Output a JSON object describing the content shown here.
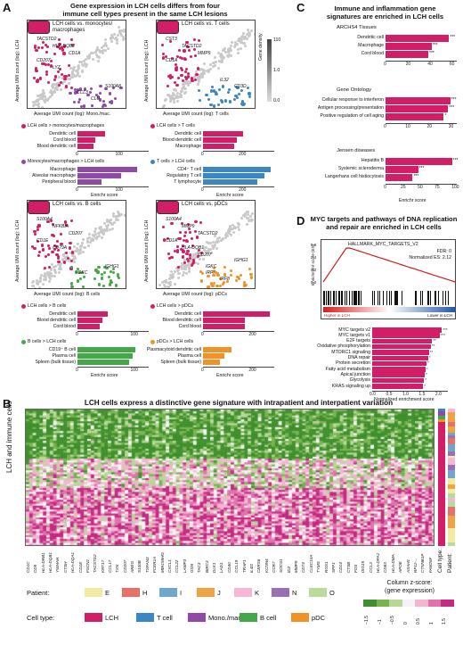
{
  "panels": {
    "A": {
      "letter": "A",
      "title_line1": "Gene expression in LCH cells differs from four",
      "title_line2": "immune cell types present in the same LCH lesions",
      "ylabel": "Average UMI count (log): LCH",
      "density_label": "Gene density",
      "density_ticks": [
        "110",
        "1.0",
        "0.0"
      ],
      "enrichr_label": "Enrichr score",
      "sub": [
        {
          "title_l1": "LCH cells vs. monocytes/",
          "title_l2": "macrophages",
          "xlabel": "Average UMI count (log): Mono./mac.",
          "genes": [
            "TACSTD2",
            "HLA-DQB2",
            "CD1A",
            "CD207",
            "LYZ",
            "S100A8",
            "CCL3",
            "CLU"
          ],
          "up_title": "LCH cells > monocytes/macrophages",
          "up_terms": [
            "Dendritic cell",
            "Cord blood",
            "Blood dendritic cell"
          ],
          "up_values": [
            70,
            45,
            40
          ],
          "down_title": "Monocytes/macrophages > LCH cells",
          "down_terms": [
            "Macrophage",
            "Alveolar macrophage",
            "Peripheral blood"
          ],
          "down_values": [
            150,
            110,
            60
          ],
          "xticks": [
            "0",
            "100"
          ]
        },
        {
          "title_l1": "LCH cells vs. T cells",
          "title_l2": "",
          "xlabel": "Average UMI count (log): T cells",
          "genes": [
            "CST3",
            "TACSTD2",
            "MMP9",
            "CD1A",
            "IL32",
            "CD3D"
          ],
          "up_title": "LCH cells > T cells",
          "up_terms": [
            "Dendritic cell",
            "Blood dendritic cell",
            "Macrophage"
          ],
          "up_values": [
            215,
            180,
            165
          ],
          "down_title": "T cells > LCH cells",
          "down_terms": [
            "CD4⁺ T cell",
            "Regulatory T cell",
            "T lymphocyte"
          ],
          "down_values": [
            360,
            330,
            290
          ],
          "xticks": [
            "0",
            "200"
          ]
        },
        {
          "title_l1": "LCH cells vs. B cells",
          "title_l2": "",
          "xlabel": "Average UMI count (log): B cells",
          "genes": [
            "S100A4",
            "NFKBIA",
            "CD207",
            "CD1E",
            "CD79A",
            "IGHG1",
            "IGKC"
          ],
          "up_title": "LCH cells > B cells",
          "up_terms": [
            "Dendritic cell",
            "Blood dendritic cell",
            "Cord blood"
          ],
          "up_values": [
            55,
            45,
            40
          ],
          "down_title": "B cells > LCH cells",
          "down_terms": [
            "CD19⁺ B cell",
            "Plasma cell",
            "Spleen (bulk tissue)"
          ],
          "down_values": [
            105,
            100,
            95
          ],
          "xticks": [
            "0",
            "100"
          ]
        },
        {
          "title_l1": "LCH cells vs. pDCs",
          "title_l2": "",
          "xlabel": "Average UMI count (log): pDCs",
          "genes": [
            "S100A4",
            "MMP9",
            "TACSTD2",
            "CD1A",
            "HLA-DQB1",
            "CD207",
            "IRF7",
            "IRF8",
            "IGHG1",
            "IGKC"
          ],
          "up_title": "LCH cells > pDCs",
          "up_terms": [
            "Dendritic cell",
            "Blood dendritic cell",
            "Cord blood"
          ],
          "up_values": [
            280,
            175,
            175
          ],
          "down_title": "pDCs > LCH cells",
          "down_terms": [
            "Plasmacytoid dendritic cell",
            "Plasma cell",
            "Spleen (bulk tissue)"
          ],
          "down_values": [
            120,
            90,
            70
          ],
          "xticks": [
            "0",
            "200"
          ]
        }
      ]
    },
    "C": {
      "letter": "C",
      "title_line1": "Immune and inflammation gene",
      "title_line2": "signatures are enriched in LCH cells",
      "groups": [
        {
          "name": "ARCHS4 Tissues",
          "terms": [
            "Dendritic cell",
            "Macrophage",
            "Cord blood"
          ],
          "values": [
            58,
            42,
            39
          ],
          "stars": [
            "***",
            "***",
            "***"
          ],
          "xticks": [
            "0",
            "20",
            "40",
            "60"
          ],
          "xmax": 65
        },
        {
          "name": "Gene Ontology",
          "terms": [
            "Cellular response to interferon",
            "Antigen processing/presentation",
            "Positive regulation of cell aging"
          ],
          "values": [
            30,
            29,
            27
          ],
          "stars": [
            "***",
            "***",
            "*"
          ],
          "xticks": [
            "0",
            "10",
            "20",
            "30"
          ],
          "xmax": 33
        },
        {
          "name": "Jensen diseases",
          "terms": [
            "Hepatitis B",
            "Systemic scleroderma",
            "Langerhans cell histiocytosis"
          ],
          "values": [
            98,
            48,
            40
          ],
          "stars": [
            "***",
            "***",
            "***"
          ],
          "xticks": [
            "0",
            "25",
            "50",
            "75",
            "100"
          ],
          "xmax": 105
        }
      ],
      "xlabel": "Enrichr score"
    },
    "D": {
      "letter": "D",
      "title_line1": "MYC targets and pathways of DNA replication",
      "title_line2": "and repair are enriched in LCH cells",
      "gsea_title": "HALLMARK_MYC_TARGETS_V2",
      "fdr": "FDR: 0",
      "nes": "Normalized ES: 2.12",
      "ylabel": "Enrichment score (ES)",
      "yticks": [
        "0.6",
        "0.4",
        "0.2",
        "0.0"
      ],
      "higher_label": "Higher in LCH",
      "lower_label": "Lower in LCH",
      "terms": [
        "MYC targets v2",
        "MYC targets v1",
        "E2F targets",
        "Oxidative phosphorylation",
        "MTORC1 signaling",
        "DNA repair",
        "Protein secretion",
        "Fatty acid metabolism",
        "Apical junction",
        "Glycolysis",
        "KRAS signaling up"
      ],
      "values": [
        2.12,
        2.05,
        1.82,
        1.78,
        1.72,
        1.7,
        1.65,
        1.62,
        1.6,
        1.58,
        1.55
      ],
      "stars": [
        "***",
        "***",
        "**",
        "**",
        "**",
        "*",
        "*",
        "*",
        "*",
        "*",
        "*"
      ],
      "xticks": [
        "0.0",
        "0.5",
        "1.0",
        "1.5",
        "2.0"
      ],
      "xlabel": "Normalized enrichment score"
    },
    "B": {
      "letter": "B",
      "title": "LCH cells express a distinctive gene signature with intrapatient and interpatient variation",
      "ylabel": "LCH and immune cells",
      "col_cell_type": "Cell type:",
      "col_patient": "Patient:",
      "genes": [
        "CD1C",
        "CD9",
        "HLA-DRB1",
        "HLA-DQB1",
        "YWHAH",
        "CTSH",
        "HLA-DQA1",
        "CD1E",
        "FSCN1",
        "TACSTD2",
        "KRT17",
        "CCL17",
        "TXN",
        "CD207",
        "AREG",
        "S100B",
        "TSPAN3",
        "FCER1A",
        "MIR155HG",
        "CXCL1",
        "CCL22",
        "LAMP3",
        "GSN",
        "TAC3",
        "BIRC3",
        "DLK1",
        "LAD1",
        "CD40",
        "CCL19",
        "TRAF1",
        "IL4I1",
        "CERS6",
        "KCNN4",
        "CCR7",
        "SOCS1",
        "ID2",
        "MMP9",
        "CD74",
        "CLEC10A",
        "TYMS",
        "RGS1",
        "SPP1",
        "CD14",
        "CTSB",
        "FOS",
        "ISG15",
        "CCL3",
        "HLA-DPA1",
        "CD83",
        "HLA-DMA",
        "APOE",
        "ASAH1",
        "RP11-...",
        "CTNNB1P",
        "FAM26F"
      ]
    },
    "legend": {
      "patient_label": "Patient:",
      "patients": [
        {
          "name": "E",
          "color": "#f2eca2"
        },
        {
          "name": "H",
          "color": "#ea6f66"
        },
        {
          "name": "I",
          "color": "#6fa6cf"
        },
        {
          "name": "J",
          "color": "#f0a340"
        },
        {
          "name": "K",
          "color": "#f7b7d4"
        },
        {
          "name": "N",
          "color": "#9a6fb6"
        },
        {
          "name": "O",
          "color": "#b9dc9c"
        }
      ],
      "celltype_label": "Cell type:",
      "celltypes": [
        {
          "name": "LCH",
          "color": "#d21e67"
        },
        {
          "name": "T cell",
          "color": "#3b86c4"
        },
        {
          "name": "Mono./mac.",
          "color": "#8f49a8"
        },
        {
          "name": "B cell",
          "color": "#43a847"
        },
        {
          "name": "pDC",
          "color": "#f19126"
        }
      ],
      "zscore_title_l1": "Column z-score:",
      "zscore_title_l2": "(gene expression)",
      "zscore_ticks": [
        "−1.5",
        "−1",
        "−0.5",
        "0",
        "0.5",
        "1",
        "1.5"
      ],
      "zscore_colors": [
        "#3f8f2d",
        "#77b34f",
        "#b7d797",
        "#f4f4f4",
        "#f3b5d2",
        "#e072ac",
        "#c42a82"
      ]
    },
    "colors": {
      "lch": "#d21e67",
      "tcell": "#3b86c4",
      "mono": "#8f49a8",
      "bcell": "#43a847",
      "pdc": "#f19126",
      "grey": "#bfbfbf"
    }
  }
}
